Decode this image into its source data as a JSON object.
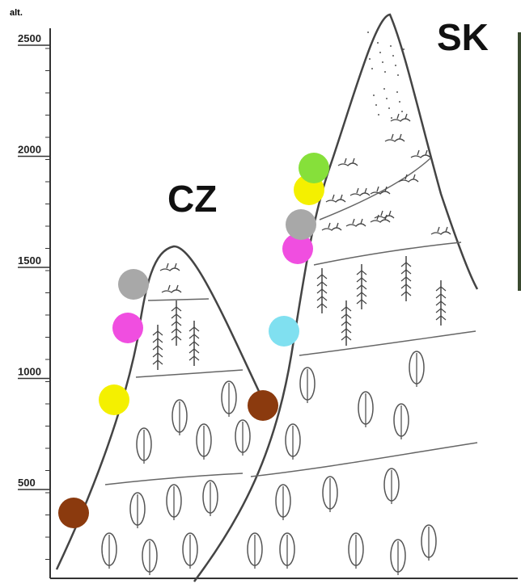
{
  "axis": {
    "label": "alt.",
    "ticks": [
      "2500",
      "2000",
      "1500",
      "1000",
      "500"
    ]
  },
  "labels": {
    "left_mountain": "CZ",
    "right_mountain": "SK"
  }
}
